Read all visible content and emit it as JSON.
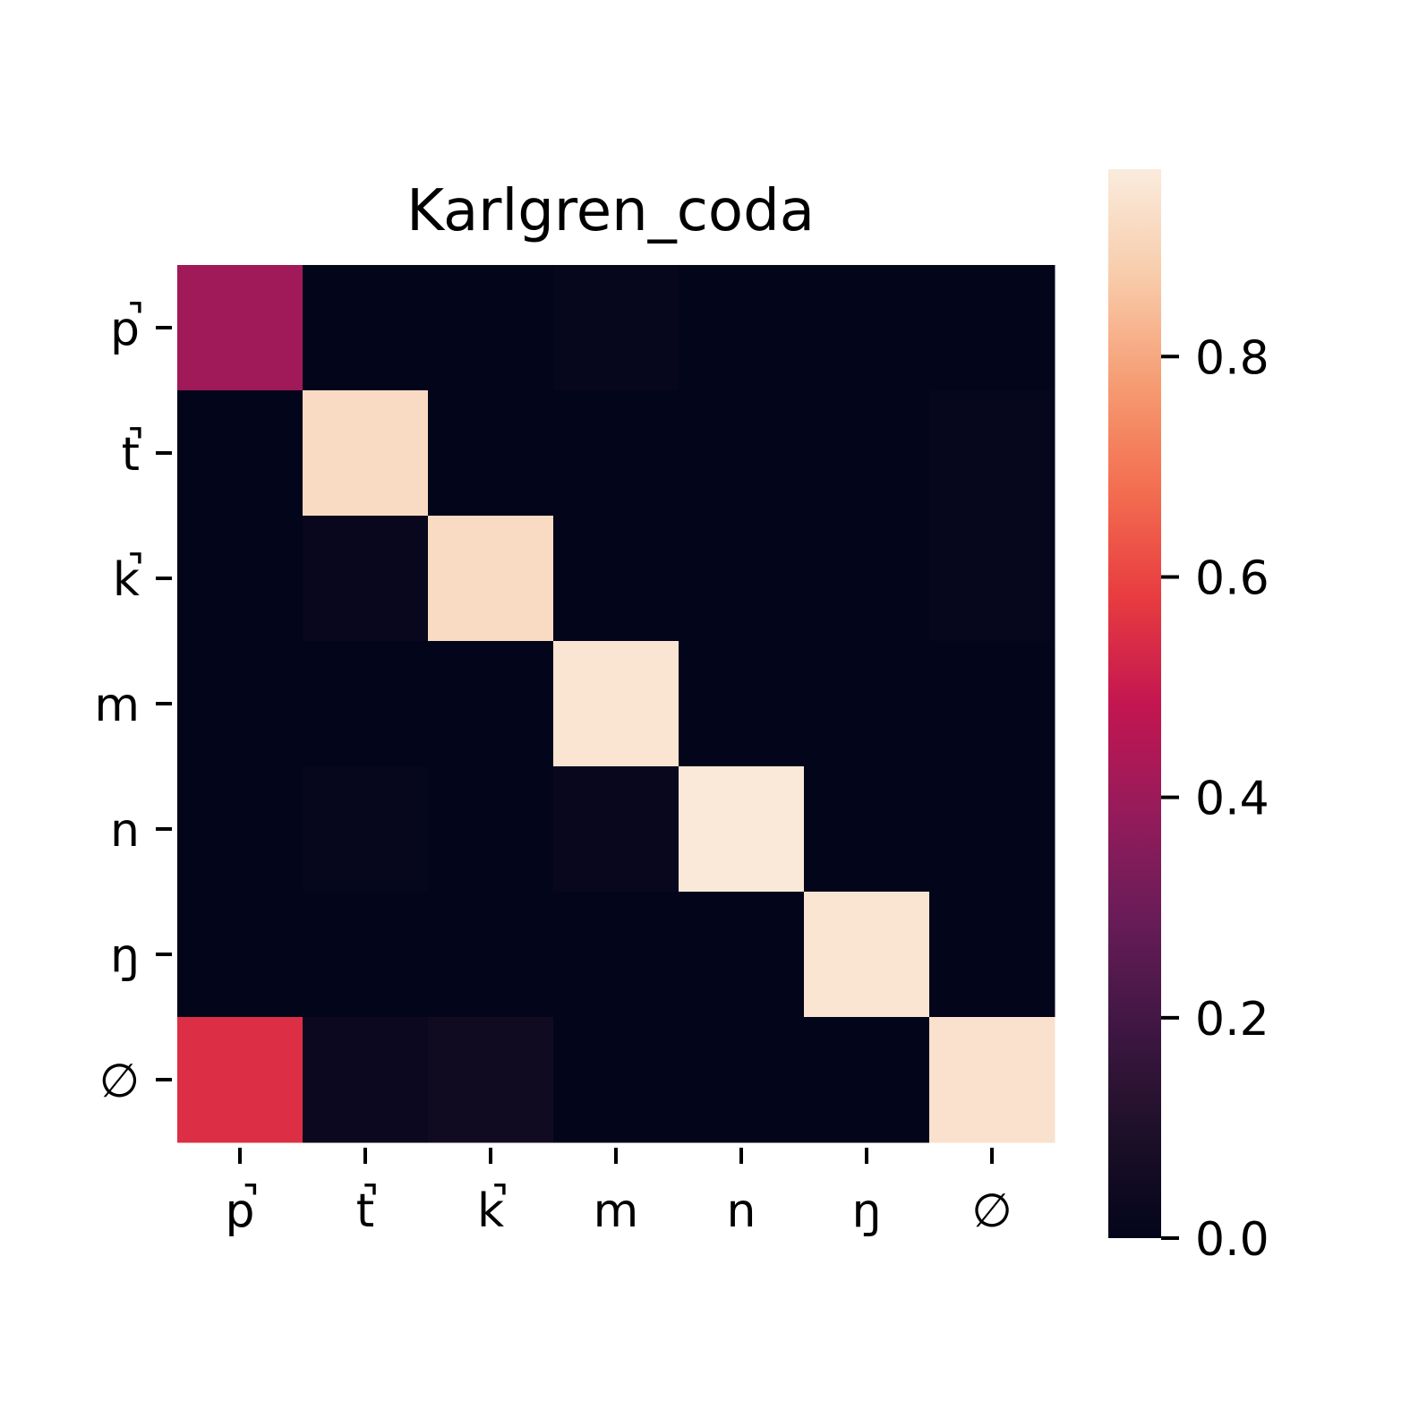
{
  "chart_data": {
    "type": "heatmap",
    "title": "Karlgren_coda",
    "xlabel": "",
    "ylabel": "",
    "x_categories": [
      "p̚",
      "t̚",
      "k̚",
      "m",
      "n",
      "ŋ",
      "∅"
    ],
    "y_categories": [
      "p̚",
      "t̚",
      "k̚",
      "m",
      "n",
      "ŋ",
      "∅"
    ],
    "values": [
      [
        0.41,
        0.0,
        0.0,
        0.01,
        0.0,
        0.0,
        0.0
      ],
      [
        0.0,
        0.92,
        0.0,
        0.0,
        0.0,
        0.0,
        0.01
      ],
      [
        0.0,
        0.02,
        0.92,
        0.0,
        0.0,
        0.0,
        0.01
      ],
      [
        0.0,
        0.0,
        0.0,
        0.95,
        0.0,
        0.0,
        0.0
      ],
      [
        0.0,
        0.01,
        0.0,
        0.02,
        0.96,
        0.0,
        0.0
      ],
      [
        0.0,
        0.0,
        0.0,
        0.0,
        0.0,
        0.95,
        0.0
      ],
      [
        0.55,
        0.03,
        0.05,
        0.0,
        0.0,
        0.0,
        0.94
      ]
    ],
    "colorbar": {
      "range": [
        0.0,
        0.97
      ],
      "ticks": [
        0.0,
        0.2,
        0.4,
        0.6,
        0.8
      ],
      "tick_labels": [
        "0.0",
        "0.2",
        "0.4",
        "0.6",
        "0.8"
      ],
      "colormap": "rocket"
    },
    "grid": false
  }
}
